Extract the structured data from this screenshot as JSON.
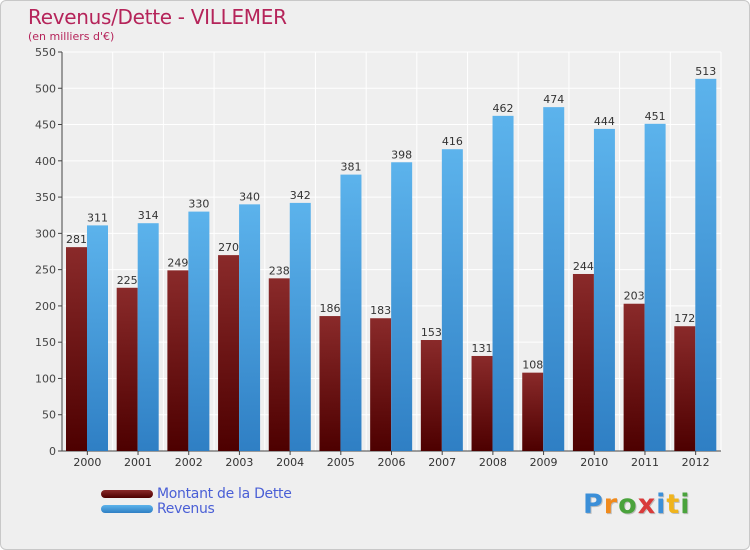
{
  "chart_data": {
    "type": "bar",
    "title": "Revenus/Dette - VILLEMER",
    "subtitle": "(en milliers d'€)",
    "xlabel": "",
    "ylabel": "",
    "categories": [
      "2000",
      "2001",
      "2002",
      "2003",
      "2004",
      "2005",
      "2006",
      "2007",
      "2008",
      "2009",
      "2010",
      "2011",
      "2012"
    ],
    "series": [
      {
        "name": "Montant de la Dette",
        "color": "#6b0d0d",
        "values": [
          281,
          225,
          249,
          270,
          238,
          186,
          183,
          153,
          131,
          108,
          244,
          203,
          172
        ]
      },
      {
        "name": "Revenus",
        "color": "#4aa3e4",
        "values": [
          311,
          314,
          330,
          340,
          342,
          381,
          398,
          416,
          462,
          474,
          444,
          451,
          513
        ]
      }
    ],
    "ylim": [
      0,
      550
    ],
    "yticks": [
      0,
      50,
      100,
      150,
      200,
      250,
      300,
      350,
      400,
      450,
      500,
      550
    ],
    "grid": true,
    "legend_position": "bottom-left"
  },
  "logo": {
    "text": "Proxiti"
  }
}
